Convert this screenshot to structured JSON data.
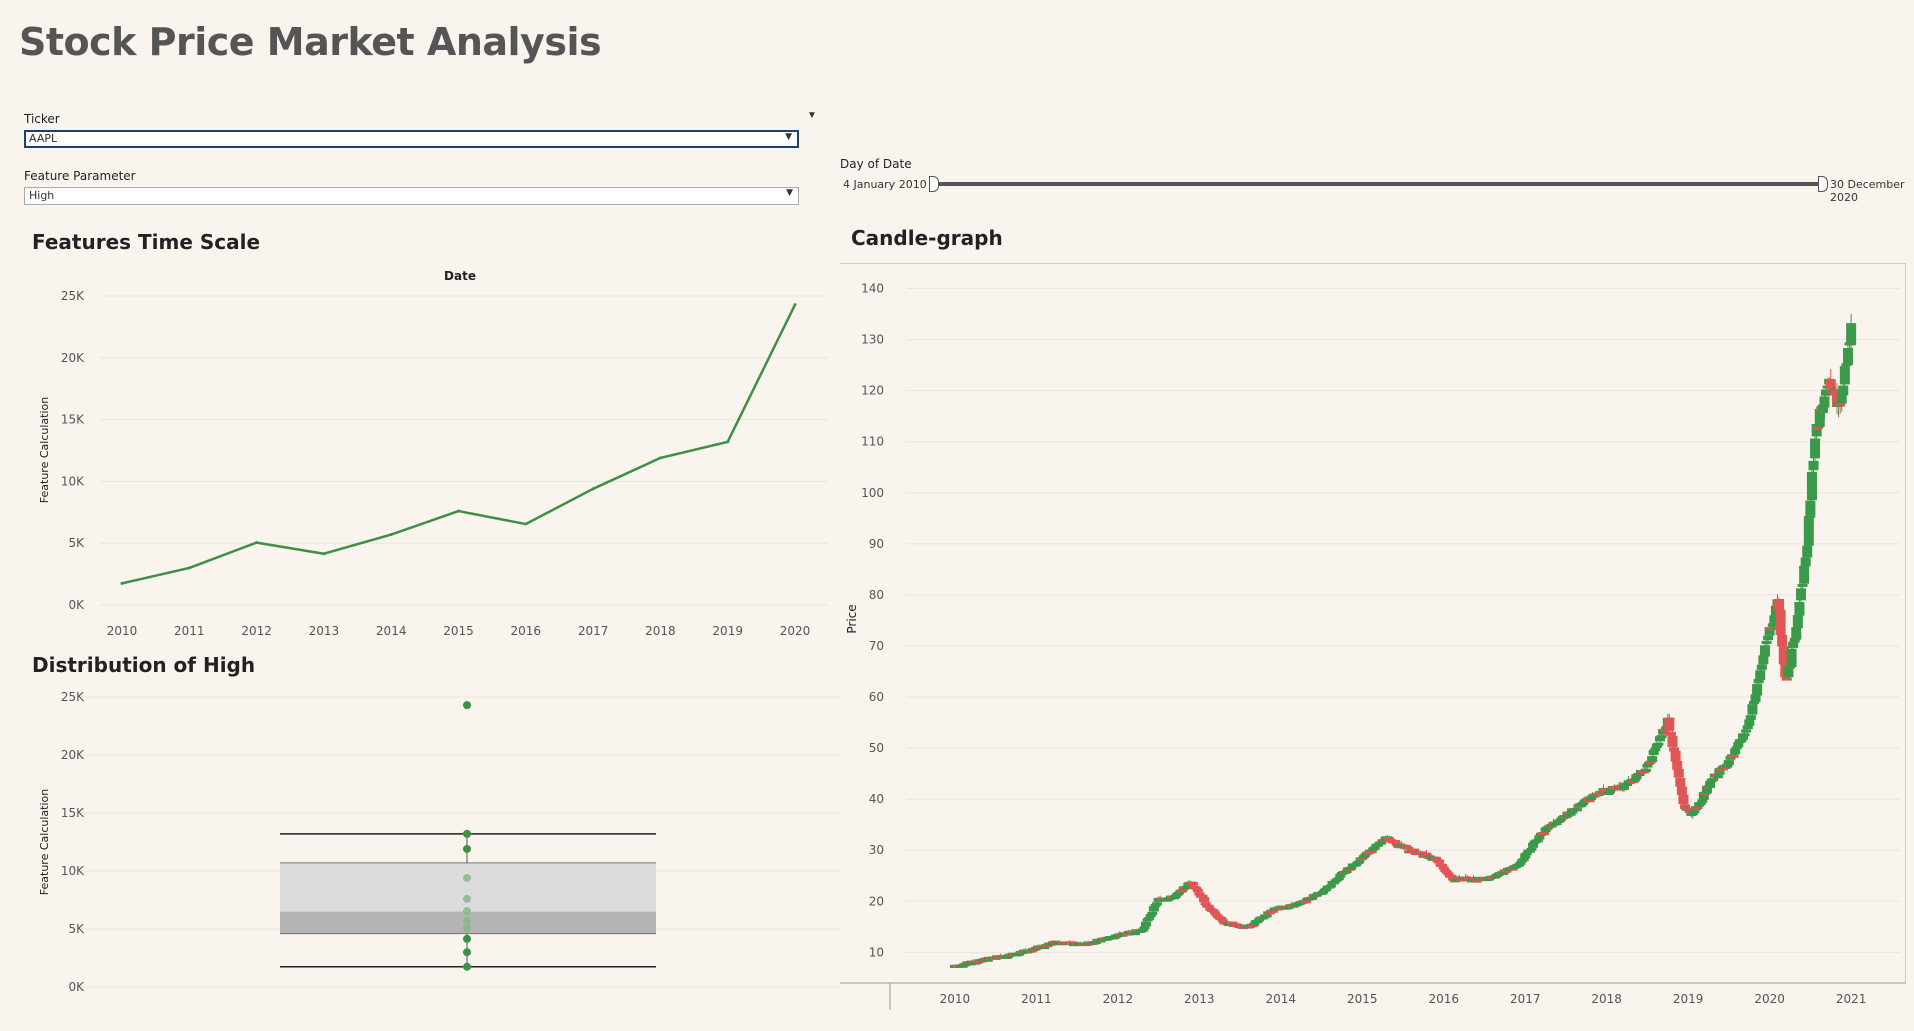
{
  "title": "Stock Price Market Analysis",
  "filters": {
    "ticker_label": "Ticker",
    "ticker_value": "AAPL",
    "feature_label": "Feature Parameter",
    "feature_value": "High"
  },
  "date_slider": {
    "label": "Day of Date",
    "start": "4 January 2010",
    "end": "30 December 2020"
  },
  "colors": {
    "line": "#3f8f45",
    "up": "#3a9a4a",
    "down": "#e05555",
    "box_upper": "#dcdcdc",
    "box_lower": "#b4b4b4"
  },
  "chart_data": [
    {
      "id": "features",
      "type": "line",
      "title": "Features Time Scale",
      "axis_title_top": "Date",
      "ylabel": "Feature Calculation",
      "yticks": [
        "0K",
        "5K",
        "10K",
        "15K",
        "20K",
        "25K"
      ],
      "ylim": [
        0,
        25000
      ],
      "categories": [
        "2010",
        "2011",
        "2012",
        "2013",
        "2014",
        "2015",
        "2016",
        "2017",
        "2018",
        "2019",
        "2020"
      ],
      "values": [
        1750,
        3000,
        5050,
        4150,
        5700,
        7600,
        6550,
        9400,
        11900,
        13200,
        24300
      ],
      "grid": true
    },
    {
      "id": "distribution",
      "type": "box",
      "title": "Distribution of High",
      "ylabel": "Feature Calculation",
      "yticks": [
        "0K",
        "5K",
        "10K",
        "15K",
        "20K",
        "25K"
      ],
      "ylim": [
        0,
        25000
      ],
      "whisker_low": 1750,
      "q1": 4600,
      "median": 6500,
      "q3": 10700,
      "whisker_high": 13200,
      "points": [
        1750,
        3000,
        4150,
        5050,
        5700,
        6550,
        7600,
        9400,
        11900,
        13200,
        24300
      ]
    },
    {
      "id": "candles",
      "type": "candlestick",
      "title": "Candle-graph",
      "ylabel": "Price",
      "yticks": [
        "10",
        "20",
        "30",
        "40",
        "50",
        "60",
        "70",
        "80",
        "90",
        "100",
        "110",
        "120",
        "130",
        "140"
      ],
      "ylim": [
        4,
        145
      ],
      "xticks": [
        "2010",
        "2011",
        "2012",
        "2013",
        "2014",
        "2015",
        "2016",
        "2017",
        "2018",
        "2019",
        "2020",
        "2021"
      ],
      "xlim": [
        2009.4,
        2021.6
      ],
      "trend": [
        [
          2010.0,
          7.5
        ],
        [
          2010.4,
          8.8
        ],
        [
          2010.8,
          10.0
        ],
        [
          2011.2,
          12.0
        ],
        [
          2011.6,
          11.8
        ],
        [
          2012.0,
          13.5
        ],
        [
          2012.3,
          14.5
        ],
        [
          2012.5,
          20.5
        ],
        [
          2012.7,
          21.0
        ],
        [
          2012.9,
          24.0
        ],
        [
          2013.1,
          19.0
        ],
        [
          2013.3,
          16.0
        ],
        [
          2013.6,
          15.0
        ],
        [
          2013.9,
          18.5
        ],
        [
          2014.2,
          19.5
        ],
        [
          2014.5,
          22.0
        ],
        [
          2014.9,
          27.5
        ],
        [
          2015.3,
          32.5
        ],
        [
          2015.6,
          30.0
        ],
        [
          2015.9,
          28.5
        ],
        [
          2016.1,
          24.5
        ],
        [
          2016.5,
          24.5
        ],
        [
          2016.9,
          27.0
        ],
        [
          2017.2,
          33.5
        ],
        [
          2017.6,
          38.0
        ],
        [
          2017.9,
          41.5
        ],
        [
          2018.2,
          42.5
        ],
        [
          2018.5,
          46.5
        ],
        [
          2018.75,
          55.5
        ],
        [
          2018.95,
          38.5
        ],
        [
          2019.05,
          37.0
        ],
        [
          2019.3,
          44.0
        ],
        [
          2019.55,
          48.5
        ],
        [
          2019.75,
          55.0
        ],
        [
          2019.95,
          70.0
        ],
        [
          2020.1,
          78.5
        ],
        [
          2020.2,
          62.5
        ],
        [
          2020.3,
          71.5
        ],
        [
          2020.45,
          88.0
        ],
        [
          2020.55,
          110.0
        ],
        [
          2020.7,
          122.0
        ],
        [
          2020.85,
          117.0
        ],
        [
          2021.0,
          132.0
        ]
      ]
    }
  ]
}
